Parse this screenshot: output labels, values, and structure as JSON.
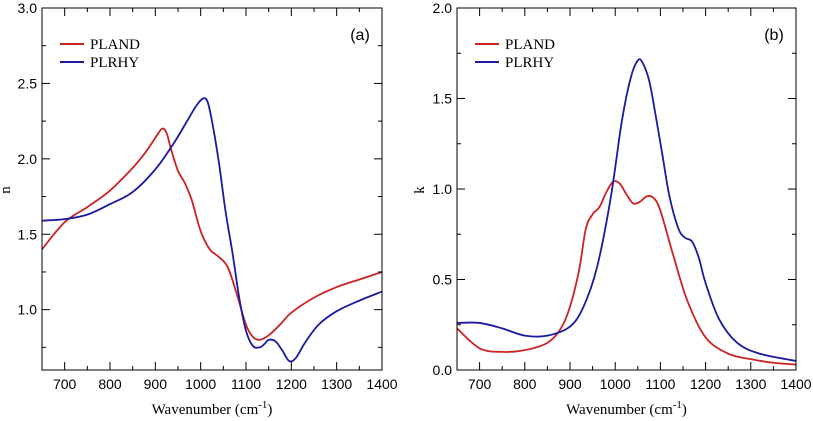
{
  "chart_data": [
    {
      "type": "line",
      "panel_label": "(a)",
      "xlabel": "Wavenumber (cm",
      "xlabel_sup": "-1",
      "xlabel_end": ")",
      "ylabel": "n",
      "xlim": [
        650,
        1400
      ],
      "ylim": [
        0.6,
        3.0
      ],
      "xticks": [
        700,
        800,
        900,
        1000,
        1100,
        1200,
        1300,
        1400
      ],
      "yticks": [
        1.0,
        1.5,
        2.0,
        2.5,
        3.0
      ],
      "ytick_labels": [
        "1.0",
        "1.5",
        "2.0",
        "2.5",
        "3.0"
      ],
      "legend_position": "top-left",
      "series": [
        {
          "name": "PLAND",
          "color": "#cc2222",
          "x": [
            650,
            700,
            750,
            800,
            850,
            880,
            900,
            915,
            925,
            935,
            950,
            965,
            980,
            1000,
            1020,
            1040,
            1060,
            1080,
            1100,
            1115,
            1130,
            1150,
            1175,
            1200,
            1250,
            1300,
            1350,
            1400
          ],
          "y": [
            1.4,
            1.58,
            1.68,
            1.79,
            1.94,
            2.05,
            2.14,
            2.2,
            2.17,
            2.06,
            1.92,
            1.84,
            1.73,
            1.52,
            1.4,
            1.35,
            1.28,
            1.1,
            0.9,
            0.82,
            0.8,
            0.83,
            0.9,
            0.98,
            1.08,
            1.15,
            1.2,
            1.25
          ]
        },
        {
          "name": "PLRHY",
          "color": "#1a1aa0",
          "x": [
            650,
            700,
            750,
            800,
            850,
            900,
            940,
            970,
            990,
            1005,
            1015,
            1025,
            1040,
            1055,
            1070,
            1085,
            1100,
            1115,
            1130,
            1140,
            1150,
            1165,
            1180,
            1195,
            1210,
            1230,
            1260,
            1300,
            1350,
            1400
          ],
          "y": [
            1.59,
            1.6,
            1.63,
            1.7,
            1.78,
            1.93,
            2.1,
            2.25,
            2.35,
            2.4,
            2.38,
            2.25,
            1.98,
            1.65,
            1.38,
            1.08,
            0.86,
            0.76,
            0.75,
            0.77,
            0.8,
            0.79,
            0.73,
            0.66,
            0.68,
            0.78,
            0.9,
            0.99,
            1.06,
            1.12
          ]
        }
      ]
    },
    {
      "type": "line",
      "panel_label": "(b)",
      "xlabel": "Wavenumber (cm",
      "xlabel_sup": "-1",
      "xlabel_end": ")",
      "ylabel": "k",
      "xlim": [
        650,
        1400
      ],
      "ylim": [
        0.0,
        2.0
      ],
      "xticks": [
        700,
        800,
        900,
        1000,
        1100,
        1200,
        1300,
        1400
      ],
      "yticks": [
        0.0,
        0.5,
        1.0,
        1.5,
        2.0
      ],
      "ytick_labels": [
        "0.0",
        "0.5",
        "1.0",
        "1.5",
        "2.0"
      ],
      "legend_position": "top-left",
      "series": [
        {
          "name": "PLAND",
          "color": "#cc2222",
          "x": [
            650,
            700,
            750,
            800,
            850,
            880,
            900,
            920,
            935,
            950,
            965,
            980,
            995,
            1010,
            1025,
            1040,
            1055,
            1070,
            1085,
            1100,
            1130,
            1160,
            1200,
            1250,
            1300,
            1350,
            1400
          ],
          "y": [
            0.23,
            0.12,
            0.1,
            0.11,
            0.15,
            0.23,
            0.35,
            0.55,
            0.78,
            0.86,
            0.9,
            0.98,
            1.04,
            1.03,
            0.97,
            0.92,
            0.93,
            0.96,
            0.95,
            0.88,
            0.62,
            0.38,
            0.18,
            0.09,
            0.06,
            0.04,
            0.03
          ]
        },
        {
          "name": "PLRHY",
          "color": "#1a1aa0",
          "x": [
            650,
            700,
            750,
            800,
            850,
            900,
            930,
            960,
            990,
            1015,
            1035,
            1050,
            1060,
            1075,
            1090,
            1105,
            1120,
            1140,
            1155,
            1170,
            1185,
            1200,
            1230,
            1270,
            1320,
            1400
          ],
          "y": [
            0.26,
            0.26,
            0.23,
            0.19,
            0.19,
            0.24,
            0.35,
            0.57,
            0.95,
            1.38,
            1.62,
            1.71,
            1.7,
            1.6,
            1.4,
            1.18,
            0.96,
            0.78,
            0.73,
            0.71,
            0.62,
            0.48,
            0.28,
            0.15,
            0.09,
            0.05
          ]
        }
      ]
    }
  ]
}
